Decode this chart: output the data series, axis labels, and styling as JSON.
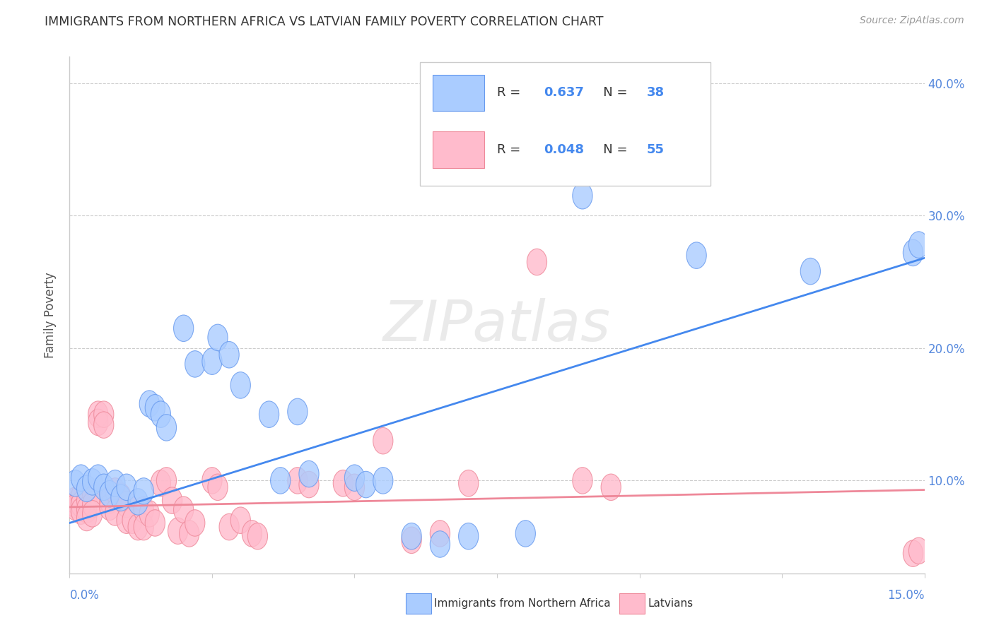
{
  "title": "IMMIGRANTS FROM NORTHERN AFRICA VS LATVIAN FAMILY POVERTY CORRELATION CHART",
  "source": "Source: ZipAtlas.com",
  "ylabel": "Family Poverty",
  "xlim": [
    0.0,
    0.15
  ],
  "ylim": [
    0.03,
    0.42
  ],
  "ytick_values": [
    0.1,
    0.2,
    0.3,
    0.4
  ],
  "ytick_labels": [
    "10.0%",
    "20.0%",
    "30.0%",
    "40.0%"
  ],
  "blue_color": "#aaccff",
  "pink_color": "#ffbbcc",
  "blue_edge_color": "#6699ee",
  "pink_edge_color": "#ee8899",
  "blue_line_color": "#4488ee",
  "pink_line_color": "#ee8899",
  "background_color": "#ffffff",
  "watermark": "ZIPatlas",
  "grid_color": "#cccccc",
  "spine_color": "#cccccc",
  "blue_scatter": [
    [
      0.001,
      0.098
    ],
    [
      0.002,
      0.102
    ],
    [
      0.003,
      0.094
    ],
    [
      0.004,
      0.099
    ],
    [
      0.005,
      0.102
    ],
    [
      0.006,
      0.095
    ],
    [
      0.007,
      0.09
    ],
    [
      0.008,
      0.098
    ],
    [
      0.009,
      0.087
    ],
    [
      0.01,
      0.095
    ],
    [
      0.012,
      0.084
    ],
    [
      0.013,
      0.092
    ],
    [
      0.014,
      0.158
    ],
    [
      0.015,
      0.155
    ],
    [
      0.016,
      0.15
    ],
    [
      0.017,
      0.14
    ],
    [
      0.02,
      0.215
    ],
    [
      0.022,
      0.188
    ],
    [
      0.025,
      0.19
    ],
    [
      0.026,
      0.208
    ],
    [
      0.028,
      0.195
    ],
    [
      0.03,
      0.172
    ],
    [
      0.035,
      0.15
    ],
    [
      0.037,
      0.1
    ],
    [
      0.04,
      0.152
    ],
    [
      0.042,
      0.105
    ],
    [
      0.05,
      0.102
    ],
    [
      0.052,
      0.097
    ],
    [
      0.055,
      0.1
    ],
    [
      0.06,
      0.058
    ],
    [
      0.065,
      0.052
    ],
    [
      0.07,
      0.058
    ],
    [
      0.08,
      0.06
    ],
    [
      0.09,
      0.315
    ],
    [
      0.11,
      0.27
    ],
    [
      0.13,
      0.258
    ],
    [
      0.148,
      0.272
    ],
    [
      0.149,
      0.278
    ]
  ],
  "pink_scatter": [
    [
      0.001,
      0.082
    ],
    [
      0.001,
      0.085
    ],
    [
      0.001,
      0.08
    ],
    [
      0.002,
      0.088
    ],
    [
      0.002,
      0.082
    ],
    [
      0.002,
      0.077
    ],
    [
      0.003,
      0.085
    ],
    [
      0.003,
      0.078
    ],
    [
      0.003,
      0.072
    ],
    [
      0.004,
      0.09
    ],
    [
      0.004,
      0.082
    ],
    [
      0.004,
      0.075
    ],
    [
      0.005,
      0.15
    ],
    [
      0.005,
      0.144
    ],
    [
      0.006,
      0.15
    ],
    [
      0.006,
      0.142
    ],
    [
      0.007,
      0.085
    ],
    [
      0.007,
      0.08
    ],
    [
      0.008,
      0.092
    ],
    [
      0.008,
      0.076
    ],
    [
      0.009,
      0.088
    ],
    [
      0.01,
      0.082
    ],
    [
      0.01,
      0.07
    ],
    [
      0.011,
      0.07
    ],
    [
      0.012,
      0.065
    ],
    [
      0.013,
      0.078
    ],
    [
      0.013,
      0.065
    ],
    [
      0.014,
      0.075
    ],
    [
      0.015,
      0.068
    ],
    [
      0.016,
      0.098
    ],
    [
      0.017,
      0.1
    ],
    [
      0.018,
      0.085
    ],
    [
      0.019,
      0.062
    ],
    [
      0.02,
      0.078
    ],
    [
      0.021,
      0.06
    ],
    [
      0.022,
      0.068
    ],
    [
      0.025,
      0.1
    ],
    [
      0.026,
      0.095
    ],
    [
      0.028,
      0.065
    ],
    [
      0.03,
      0.07
    ],
    [
      0.032,
      0.06
    ],
    [
      0.033,
      0.058
    ],
    [
      0.04,
      0.1
    ],
    [
      0.042,
      0.097
    ],
    [
      0.048,
      0.098
    ],
    [
      0.05,
      0.095
    ],
    [
      0.055,
      0.13
    ],
    [
      0.06,
      0.055
    ],
    [
      0.065,
      0.06
    ],
    [
      0.07,
      0.098
    ],
    [
      0.082,
      0.265
    ],
    [
      0.09,
      0.1
    ],
    [
      0.095,
      0.095
    ],
    [
      0.148,
      0.045
    ],
    [
      0.149,
      0.047
    ]
  ],
  "blue_trendline": [
    [
      0.0,
      0.068
    ],
    [
      0.15,
      0.268
    ]
  ],
  "pink_trendline": [
    [
      0.0,
      0.08
    ],
    [
      0.15,
      0.093
    ]
  ]
}
